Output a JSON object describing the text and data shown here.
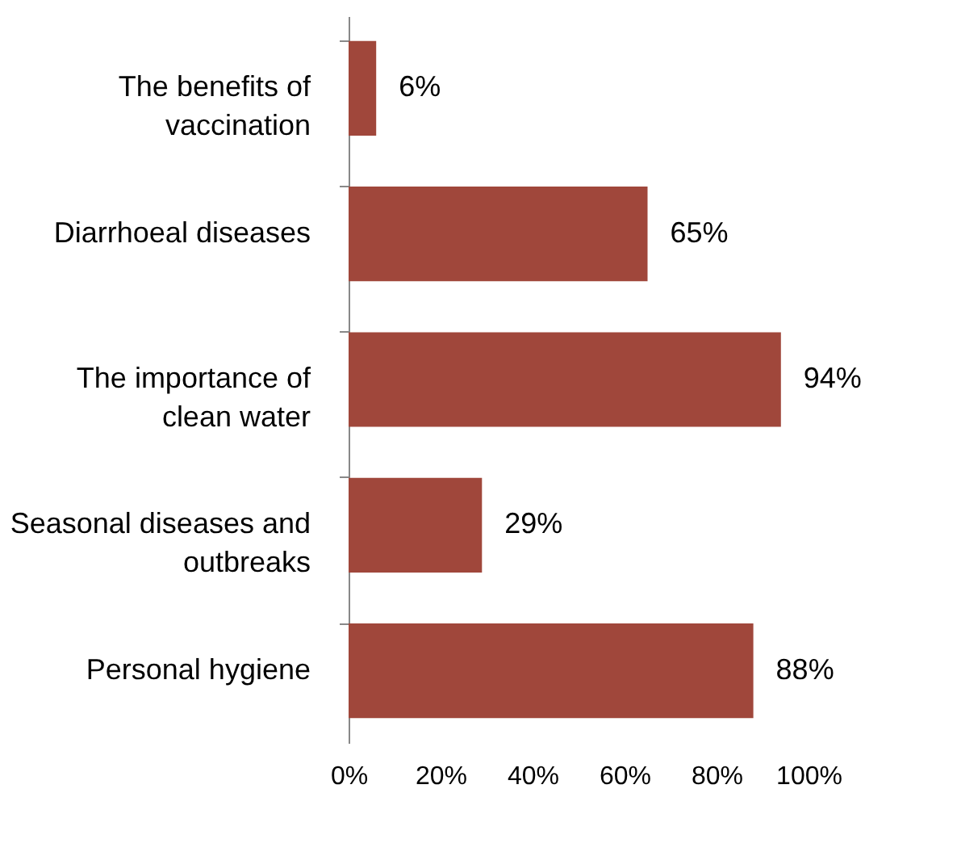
{
  "chart_data": {
    "type": "bar",
    "orientation": "horizontal",
    "categories": [
      "The benefits of vaccination",
      "Diarrhoeal diseases",
      "The importance of clean water",
      "Seasonal diseases and outbreaks",
      "Personal hygiene"
    ],
    "values": [
      6,
      65,
      94,
      29,
      88
    ],
    "value_labels": [
      "6%",
      "65%",
      "94%",
      "29%",
      "88%"
    ],
    "color": "#a0473b",
    "xlim": [
      0,
      100
    ],
    "xticks": [
      {
        "value": 0,
        "label": "0%"
      },
      {
        "value": 20,
        "label": "20%"
      },
      {
        "value": 40,
        "label": "40%"
      },
      {
        "value": 60,
        "label": "60%"
      },
      {
        "value": 80,
        "label": "80%"
      },
      {
        "value": 100,
        "label": "100%"
      }
    ],
    "grid": false
  }
}
